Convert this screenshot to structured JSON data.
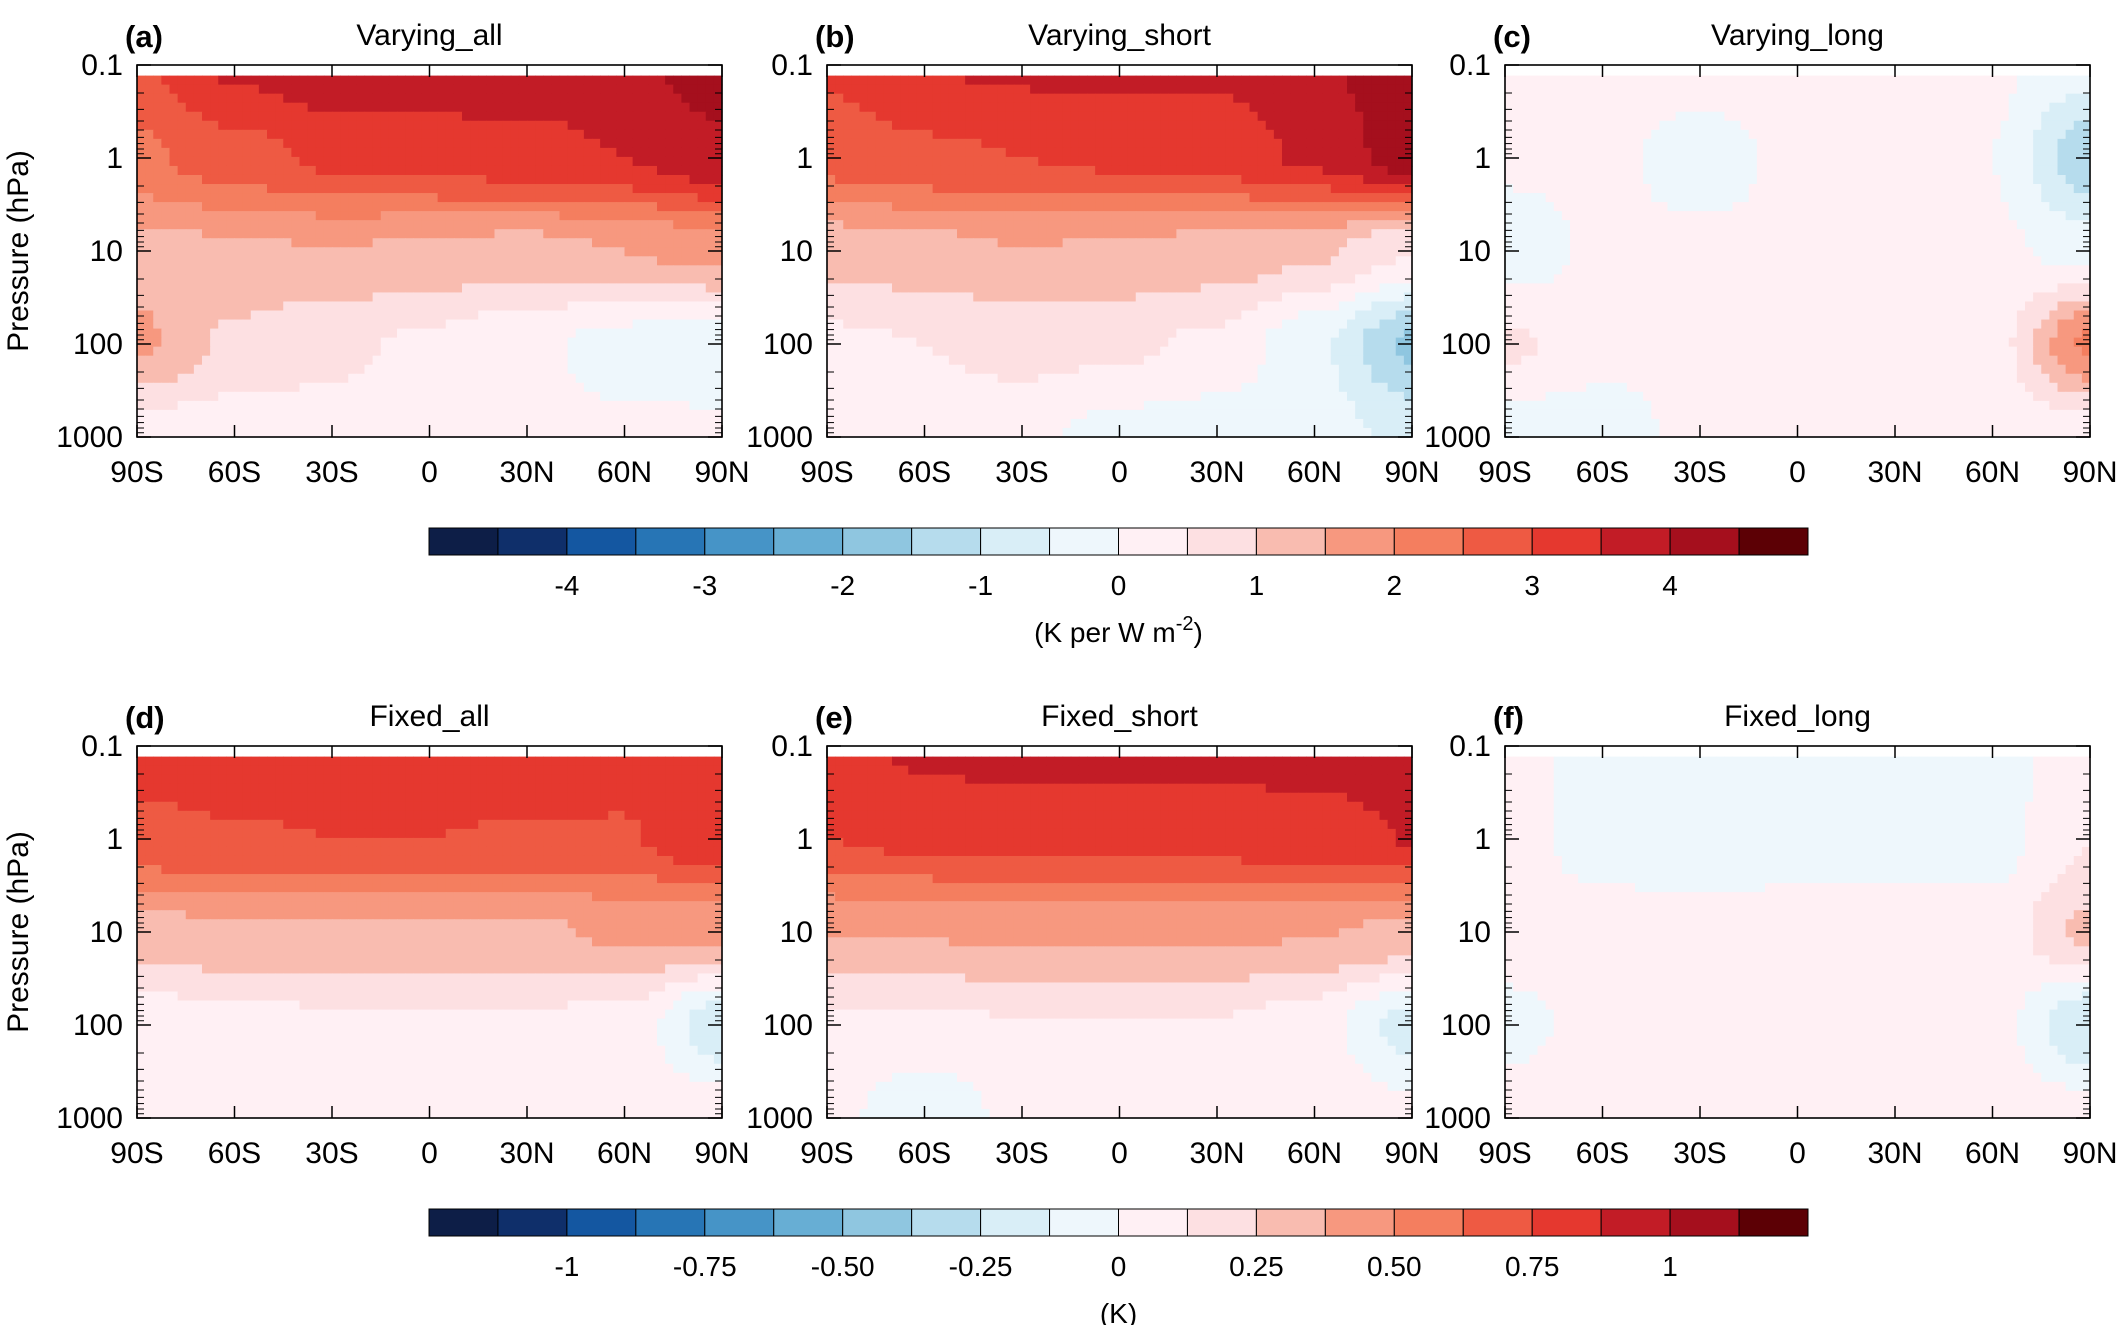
{
  "chart_data": [
    {
      "type": "heatmap",
      "panel_label": "(a)",
      "title": "Varying_all",
      "xlabel": "",
      "ylabel": "Pressure (hPa)",
      "xticks": [
        "90S",
        "60S",
        "30S",
        "0",
        "30N",
        "60N",
        "90N"
      ],
      "yticks": [
        "0.1",
        "1",
        "10",
        "100",
        "1000"
      ],
      "xlim": [
        -90,
        90
      ],
      "ylim": [
        1000,
        0.1
      ],
      "yscale": "log",
      "lat": [
        -90,
        -60,
        -30,
        0,
        30,
        60,
        90
      ],
      "pressure": [
        0.1,
        1,
        10,
        100,
        1000
      ],
      "values": [
        [
          2.9,
          3.6,
          3.9,
          3.9,
          3.8,
          3.9,
          4.2
        ],
        [
          2.4,
          2.8,
          3.1,
          3.2,
          3.3,
          3.5,
          3.9
        ],
        [
          1.3,
          1.4,
          1.5,
          1.4,
          1.3,
          1.5,
          1.7
        ],
        [
          1.6,
          0.9,
          0.6,
          0.4,
          0.1,
          -0.2,
          -0.3
        ],
        [
          0.2,
          0.2,
          0.3,
          0.2,
          0.1,
          0.1,
          0.1
        ]
      ]
    },
    {
      "type": "heatmap",
      "panel_label": "(b)",
      "title": "Varying_short",
      "xlabel": "",
      "ylabel": "",
      "xticks": [
        "90S",
        "60S",
        "30S",
        "0",
        "30N",
        "60N",
        "90N"
      ],
      "yticks": [
        "0.1",
        "1",
        "10",
        "100",
        "1000"
      ],
      "xlim": [
        -90,
        90
      ],
      "ylim": [
        1000,
        0.1
      ],
      "yscale": "log",
      "lat": [
        -90,
        -60,
        -30,
        0,
        30,
        60,
        90
      ],
      "pressure": [
        0.1,
        1,
        10,
        100,
        1000
      ],
      "values": [
        [
          3.1,
          3.5,
          3.6,
          3.6,
          3.6,
          3.9,
          4.4
        ],
        [
          2.7,
          2.9,
          3.0,
          3.1,
          3.2,
          3.6,
          4.3
        ],
        [
          1.2,
          1.3,
          1.5,
          1.4,
          1.3,
          1.1,
          0.5
        ],
        [
          0.4,
          0.5,
          0.7,
          0.6,
          0.4,
          -0.4,
          -1.6
        ],
        [
          0.2,
          0.2,
          0.1,
          -0.2,
          -0.3,
          -0.3,
          -0.6
        ]
      ]
    },
    {
      "type": "heatmap",
      "panel_label": "(c)",
      "title": "Varying_long",
      "xlabel": "",
      "ylabel": "",
      "xticks": [
        "90S",
        "60S",
        "30S",
        "0",
        "30N",
        "60N",
        "90N"
      ],
      "yticks": [
        "0.1",
        "1",
        "10",
        "100",
        "1000"
      ],
      "xlim": [
        -90,
        90
      ],
      "ylim": [
        1000,
        0.1
      ],
      "yscale": "log",
      "lat": [
        -90,
        -60,
        -30,
        0,
        30,
        60,
        90
      ],
      "pressure": [
        0.1,
        1,
        10,
        100,
        1000
      ],
      "values": [
        [
          0.1,
          0.2,
          0.2,
          0.2,
          0.2,
          0.1,
          -0.3
        ],
        [
          0.1,
          0.1,
          -0.2,
          0.1,
          0.1,
          0.0,
          -1.4
        ],
        [
          -0.3,
          0.1,
          0.1,
          0.1,
          0.1,
          0.1,
          -0.2
        ],
        [
          0.6,
          0.2,
          0.1,
          0.1,
          0.1,
          0.3,
          2.1
        ],
        [
          -0.3,
          -0.3,
          0.2,
          0.1,
          0.1,
          0.1,
          0.2
        ]
      ]
    },
    {
      "type": "heatmap",
      "panel_label": "(d)",
      "title": "Fixed_all",
      "xlabel": "",
      "ylabel": "Pressure (hPa)",
      "xticks": [
        "90S",
        "60S",
        "30S",
        "0",
        "30N",
        "60N",
        "90N"
      ],
      "yticks": [
        "0.1",
        "1",
        "10",
        "100",
        "1000"
      ],
      "xlim": [
        -90,
        90
      ],
      "ylim": [
        1000,
        0.1
      ],
      "yscale": "log",
      "lat": [
        -90,
        -60,
        -30,
        0,
        30,
        60,
        90
      ],
      "pressure": [
        0.1,
        1,
        10,
        100,
        1000
      ],
      "values": [
        [
          0.8,
          0.82,
          0.82,
          0.82,
          0.82,
          0.8,
          0.85
        ],
        [
          0.72,
          0.74,
          0.75,
          0.75,
          0.74,
          0.74,
          0.86
        ],
        [
          0.33,
          0.35,
          0.36,
          0.35,
          0.35,
          0.4,
          0.4
        ],
        [
          0.05,
          0.08,
          0.1,
          0.1,
          0.1,
          0.08,
          -0.22
        ],
        [
          0.08,
          0.1,
          0.1,
          0.1,
          0.1,
          0.1,
          0.08
        ]
      ]
    },
    {
      "type": "heatmap",
      "panel_label": "(e)",
      "title": "Fixed_short",
      "xlabel": "",
      "ylabel": "",
      "xticks": [
        "90S",
        "60S",
        "30S",
        "0",
        "30N",
        "60N",
        "90N"
      ],
      "yticks": [
        "0.1",
        "1",
        "10",
        "100",
        "1000"
      ],
      "xlim": [
        -90,
        90
      ],
      "ylim": [
        1000,
        0.1
      ],
      "yscale": "log",
      "lat": [
        -90,
        -60,
        -30,
        0,
        30,
        60,
        90
      ],
      "pressure": [
        0.1,
        1,
        10,
        100,
        1000
      ],
      "values": [
        [
          0.82,
          0.9,
          0.93,
          0.93,
          0.92,
          0.92,
          0.93
        ],
        [
          0.75,
          0.78,
          0.8,
          0.8,
          0.8,
          0.83,
          0.88
        ],
        [
          0.38,
          0.38,
          0.4,
          0.4,
          0.4,
          0.38,
          0.35
        ],
        [
          0.1,
          0.1,
          0.12,
          0.12,
          0.12,
          0.05,
          -0.18
        ],
        [
          0.05,
          -0.12,
          0.05,
          0.08,
          0.08,
          0.08,
          0.05
        ]
      ]
    },
    {
      "type": "heatmap",
      "panel_label": "(f)",
      "title": "Fixed_long",
      "xlabel": "",
      "ylabel": "",
      "xticks": [
        "90S",
        "60S",
        "30S",
        "0",
        "30N",
        "60N",
        "90N"
      ],
      "yticks": [
        "0.1",
        "1",
        "10",
        "100",
        "1000"
      ],
      "xlim": [
        -90,
        90
      ],
      "ylim": [
        1000,
        0.1
      ],
      "yscale": "log",
      "lat": [
        -90,
        -60,
        -30,
        0,
        30,
        60,
        90
      ],
      "pressure": [
        0.1,
        1,
        10,
        100,
        1000
      ],
      "values": [
        [
          0.05,
          -0.05,
          -0.05,
          -0.05,
          -0.05,
          -0.05,
          0.08
        ],
        [
          0.05,
          -0.05,
          -0.08,
          -0.05,
          -0.05,
          -0.05,
          0.12
        ],
        [
          0.05,
          0.05,
          0.05,
          0.05,
          0.05,
          0.05,
          0.28
        ],
        [
          -0.03,
          0.03,
          0.05,
          0.05,
          0.05,
          0.05,
          -0.25
        ],
        [
          0.05,
          0.05,
          0.05,
          0.05,
          0.05,
          0.05,
          0.08
        ]
      ]
    }
  ],
  "colorbars": [
    {
      "unit_prefix": "(K per W m",
      "unit_superscript": "-2",
      "unit_suffix": ")",
      "tick_labels": [
        "-4",
        "-3",
        "-2",
        "-1",
        "0",
        "1",
        "2",
        "3",
        "4"
      ],
      "tick_values": [
        -4,
        -3,
        -2,
        -1,
        0,
        1,
        2,
        3,
        4
      ],
      "range": [
        -5,
        5
      ]
    },
    {
      "unit_prefix": "(K)",
      "unit_superscript": "",
      "unit_suffix": "",
      "tick_labels": [
        "-1",
        "-0.75",
        "-0.50",
        "-0.25",
        "0",
        "0.25",
        "0.50",
        "0.75",
        "1"
      ],
      "tick_values": [
        -1,
        -0.75,
        -0.5,
        -0.25,
        0,
        0.25,
        0.5,
        0.75,
        1
      ],
      "range": [
        -1.25,
        1.25
      ]
    }
  ],
  "palette": [
    "#0d1e47",
    "#0f2f6a",
    "#1457a1",
    "#2775b5",
    "#4694c7",
    "#67aed4",
    "#8fc6e0",
    "#b6dced",
    "#d9eef7",
    "#eef7fc",
    "#fff0f4",
    "#fde0e2",
    "#f9bcb0",
    "#f7987f",
    "#f47e5f",
    "#ee5a43",
    "#e5382f",
    "#c21c26",
    "#a50f1d",
    "#7c0a16",
    "#5c0005"
  ]
}
